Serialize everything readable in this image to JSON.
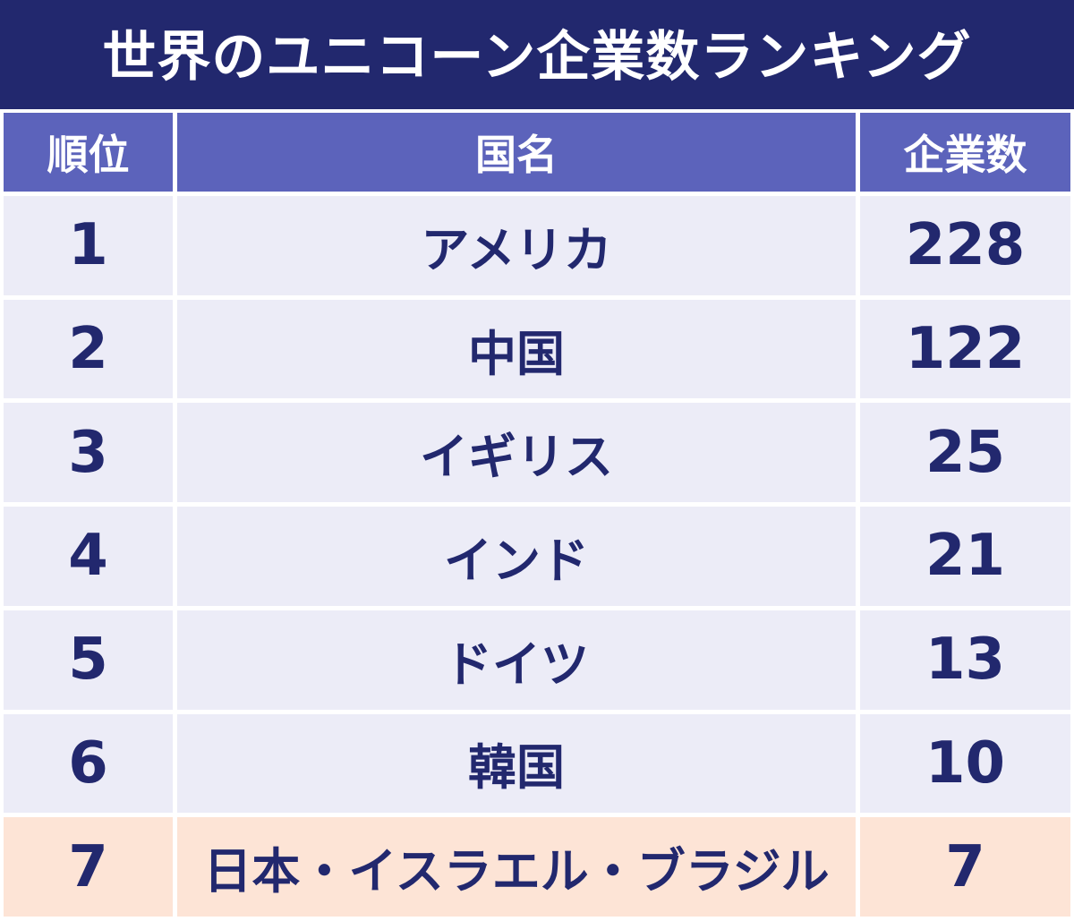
{
  "title": "世界のユニコーン企業数ランキング",
  "chart_data": {
    "type": "table",
    "title": "世界のユニコーン企業数ランキング",
    "columns": [
      "順位",
      "国名",
      "企業数"
    ],
    "rows": [
      {
        "rank": "1",
        "country": "アメリカ",
        "count": "228",
        "highlight": false
      },
      {
        "rank": "2",
        "country": "中国",
        "count": "122",
        "highlight": false
      },
      {
        "rank": "3",
        "country": "イギリス",
        "count": "25",
        "highlight": false
      },
      {
        "rank": "4",
        "country": "インド",
        "count": "21",
        "highlight": false
      },
      {
        "rank": "5",
        "country": "ドイツ",
        "count": "13",
        "highlight": false
      },
      {
        "rank": "6",
        "country": "韓国",
        "count": "10",
        "highlight": false
      },
      {
        "rank": "7",
        "country": "日本・イスラエル・ブラジル",
        "count": "7",
        "highlight": true
      }
    ]
  },
  "colors": {
    "title_bg": "#22286e",
    "header_bg": "#5c63bb",
    "row_bg": "#ececf7",
    "highlight_bg": "#fde4d6",
    "text": "#22286e"
  }
}
